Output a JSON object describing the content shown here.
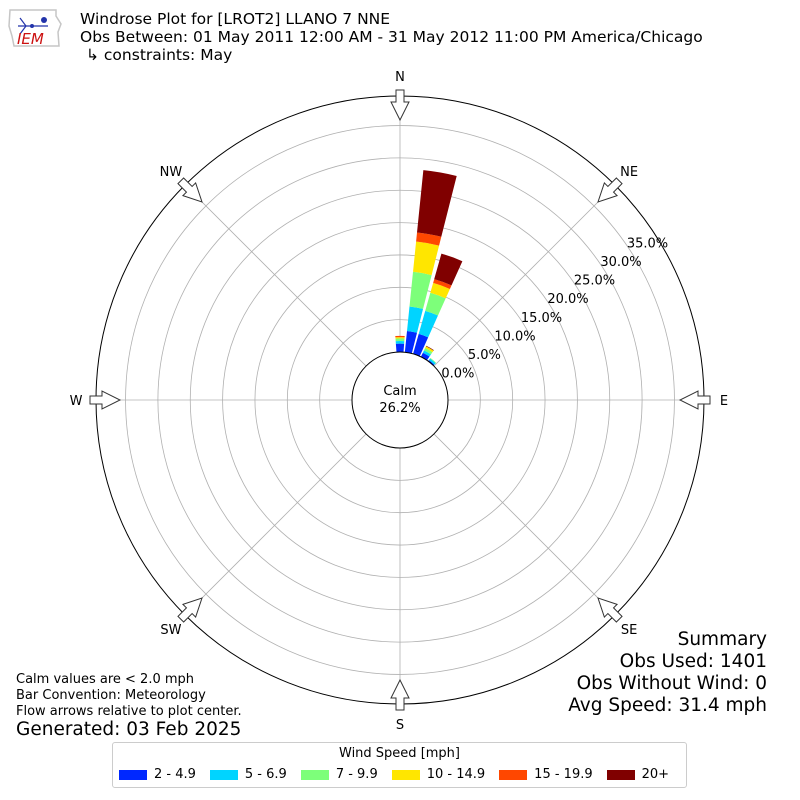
{
  "header": {
    "title": "Windrose Plot for [LROT2] LLANO 7 NNE",
    "period": "Obs Between: 01 May 2011 12:00 AM - 31 May 2012 11:00 PM America/Chicago",
    "constraints": "↳ constraints: May",
    "logo_text": "IEM"
  },
  "notes": {
    "calm_def": "Calm values are < 2.0 mph",
    "bar_convention": "Bar Convention: Meteorology",
    "flow_arrows": "Flow arrows relative to plot center.",
    "generated": "Generated: 03 Feb 2025"
  },
  "summary": {
    "title": "Summary",
    "obs_used": "Obs Used: 1401",
    "obs_without_wind": "Obs Without Wind: 0",
    "avg_speed": "Avg Speed: 31.4 mph"
  },
  "legend": {
    "title": "Wind Speed [mph]",
    "items": [
      {
        "label": "2 - 4.9",
        "color": "#0028ff"
      },
      {
        "label": "5 - 6.9",
        "color": "#00d4ff"
      },
      {
        "label": "7 - 9.9",
        "color": "#7dff7a"
      },
      {
        "label": "10 - 14.9",
        "color": "#ffe600"
      },
      {
        "label": "15 - 19.9",
        "color": "#ff4700"
      },
      {
        "label": "20+",
        "color": "#800000"
      }
    ]
  },
  "chart_data": {
    "type": "windrose",
    "calm": {
      "label": "Calm",
      "value_text": "26.2%",
      "value": 26.2
    },
    "directions": [
      "N",
      "NE",
      "E",
      "SE",
      "S",
      "SW",
      "W",
      "NW"
    ],
    "radial_ticks": [
      "0.0%",
      "5.0%",
      "10.0%",
      "15.0%",
      "20.0%",
      "25.0%",
      "30.0%",
      "35.0%"
    ],
    "radial_range": [
      0,
      40
    ],
    "grid": true,
    "units": "percent of observations",
    "sectors": [
      {
        "direction_deg": 0,
        "values": [
          1.3,
          0.4,
          0.4,
          0.2,
          0.2,
          0.0
        ]
      },
      {
        "direction_deg": 10,
        "values": [
          3.3,
          3.8,
          5.4,
          4.7,
          1.4,
          9.7
        ]
      },
      {
        "direction_deg": 20,
        "values": [
          3.2,
          3.7,
          2.9,
          1.6,
          0.6,
          4.1
        ]
      },
      {
        "direction_deg": 30,
        "values": [
          0.7,
          0.4,
          0.4,
          0.3,
          0.0,
          0.1
        ]
      },
      {
        "direction_deg": 40,
        "values": [
          0.2,
          0.3,
          0.1,
          0.0,
          0.0,
          0.0
        ]
      }
    ]
  }
}
